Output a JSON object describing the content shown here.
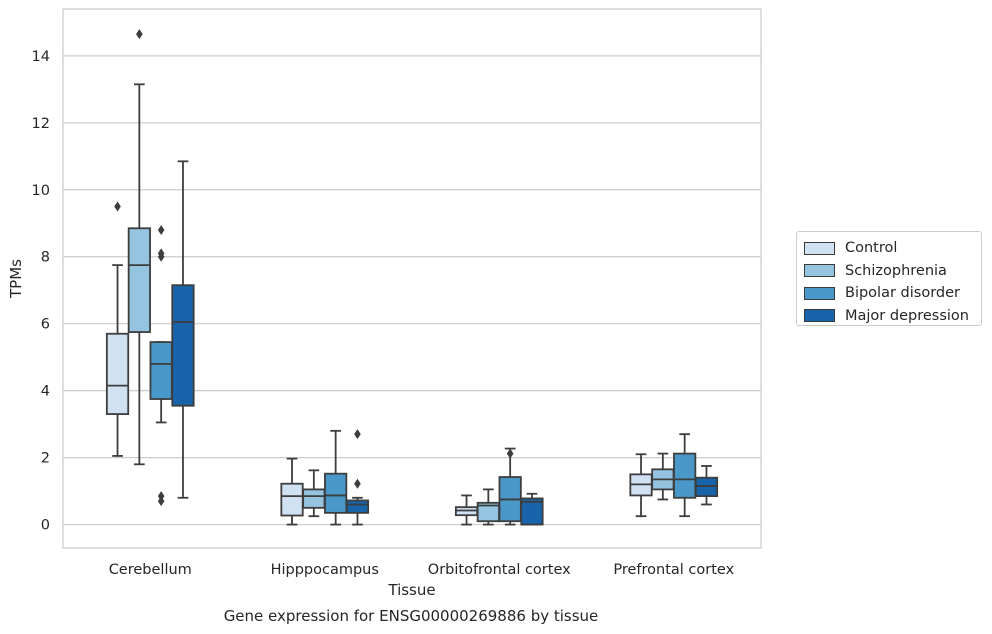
{
  "chart_data": {
    "type": "boxplot",
    "title": "",
    "xlabel": "Tissue",
    "ylabel": "TPMs",
    "caption": "Gene expression for ENSG00000269886 by tissue",
    "ylim": [
      -0.7,
      15.4
    ],
    "yticks": [
      0,
      2,
      4,
      6,
      8,
      10,
      12,
      14
    ],
    "grid": true,
    "legend_position": "right",
    "categories": [
      "Cerebellum",
      "Hipppocampus",
      "Orbitofrontal cortex",
      "Prefrontal cortex"
    ],
    "series": [
      {
        "name": "Control",
        "color": "#d0e1f2",
        "boxes": [
          {
            "whislo": 2.05,
            "q1": 3.3,
            "med": 4.15,
            "q3": 5.7,
            "whishi": 7.75,
            "fliers": [
              9.5
            ]
          },
          {
            "whislo": 0.0,
            "q1": 0.27,
            "med": 0.85,
            "q3": 1.22,
            "whishi": 1.97,
            "fliers": []
          },
          {
            "whislo": 0.0,
            "q1": 0.28,
            "med": 0.42,
            "q3": 0.52,
            "whishi": 0.87,
            "fliers": []
          },
          {
            "whislo": 0.25,
            "q1": 0.87,
            "med": 1.2,
            "q3": 1.5,
            "whishi": 2.1,
            "fliers": []
          }
        ]
      },
      {
        "name": "Schizophrenia",
        "color": "#94c4df",
        "boxes": [
          {
            "whislo": 1.8,
            "q1": 5.75,
            "med": 7.75,
            "q3": 8.85,
            "whishi": 13.15,
            "fliers": [
              14.65
            ]
          },
          {
            "whislo": 0.25,
            "q1": 0.5,
            "med": 0.85,
            "q3": 1.05,
            "whishi": 1.62,
            "fliers": []
          },
          {
            "whislo": 0.0,
            "q1": 0.1,
            "med": 0.57,
            "q3": 0.65,
            "whishi": 1.05,
            "fliers": []
          },
          {
            "whislo": 0.75,
            "q1": 1.05,
            "med": 1.35,
            "q3": 1.65,
            "whishi": 2.12,
            "fliers": []
          }
        ]
      },
      {
        "name": "Bipolar disorder",
        "color": "#4a98c9",
        "boxes": [
          {
            "whislo": 3.05,
            "q1": 3.75,
            "med": 4.8,
            "q3": 5.45,
            "whishi": 5.45,
            "fliers": [
              8.8,
              8.1,
              8.0,
              0.85,
              0.7
            ]
          },
          {
            "whislo": 0.0,
            "q1": 0.35,
            "med": 0.87,
            "q3": 1.52,
            "whishi": 2.8,
            "fliers": []
          },
          {
            "whislo": 0.0,
            "q1": 0.1,
            "med": 0.75,
            "q3": 1.42,
            "whishi": 2.27,
            "fliers": [
              2.12
            ]
          },
          {
            "whislo": 0.25,
            "q1": 0.8,
            "med": 1.35,
            "q3": 2.12,
            "whishi": 2.7,
            "fliers": []
          }
        ]
      },
      {
        "name": "Major depression",
        "color": "#1764ab",
        "boxes": [
          {
            "whislo": 0.8,
            "q1": 3.55,
            "med": 6.05,
            "q3": 7.15,
            "whishi": 10.85,
            "fliers": []
          },
          {
            "whislo": 0.0,
            "q1": 0.35,
            "med": 0.6,
            "q3": 0.72,
            "whishi": 0.8,
            "fliers": [
              2.7,
              1.22
            ]
          },
          {
            "whislo": 0.0,
            "q1": 0.0,
            "med": 0.68,
            "q3": 0.78,
            "whishi": 0.92,
            "fliers": []
          },
          {
            "whislo": 0.6,
            "q1": 0.85,
            "med": 1.15,
            "q3": 1.4,
            "whishi": 1.75,
            "fliers": []
          }
        ]
      }
    ]
  }
}
